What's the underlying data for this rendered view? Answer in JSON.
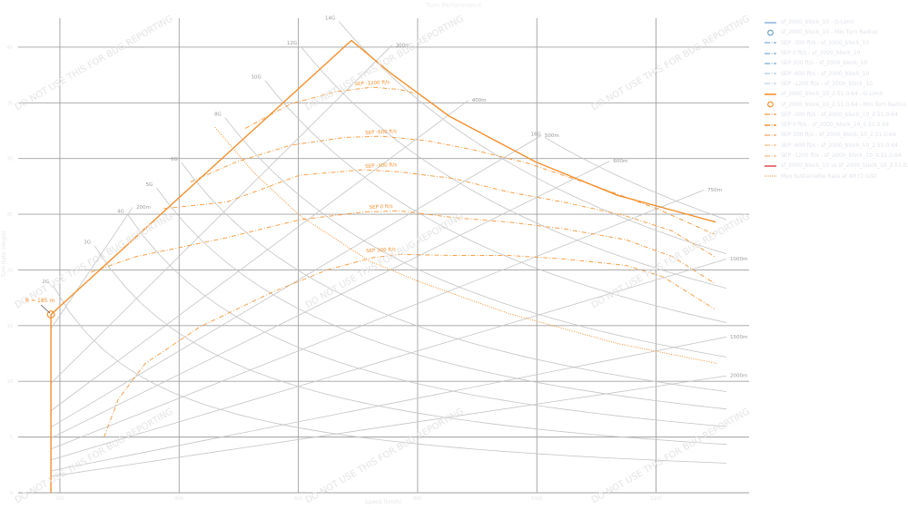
{
  "title": "Turn Performance",
  "watermark": "DO NOT USE THIS FOR BUG REPORTING",
  "colors": {
    "grid": "#a0a0a0",
    "reference": "#c4c4c4",
    "orange": "#f4902e",
    "blue": "#8fb8de",
    "red": "#e15759",
    "tick_text": "#e6e6e6"
  },
  "legend": [
    {
      "label": "sf_2000_block_10 - G-Limit",
      "color": "#8fb8de",
      "style": "solid"
    },
    {
      "label": "sf_2000_block_10 - Min Turn Radius",
      "color": "#6f9fd0",
      "style": "circle"
    },
    {
      "label": "SEP -300 ft/s - sf_2000_block_10",
      "color": "#8fb8de",
      "style": "dashdot"
    },
    {
      "label": "SEP 0 ft/s - sf_2000_block_10",
      "color": "#8fb8de",
      "style": "dashdot"
    },
    {
      "label": "SEP 300 ft/s - sf_2000_block_10",
      "color": "#8fb8de",
      "style": "dashdot"
    },
    {
      "label": "SEP -600 ft/s - sf_2000_block_10",
      "color": "#b9d3ea",
      "style": "dashdot"
    },
    {
      "label": "SEP -1200 ft/s - sf_2000_block_10",
      "color": "#c9dcee",
      "style": "dashdot"
    },
    {
      "label": "sf_2000_block_10_2.51.0.64 - G-Limit",
      "color": "#f4902e",
      "style": "solid"
    },
    {
      "label": "sf_2000_block_10_2.51.0.64 - Min Turn Radius",
      "color": "#f4902e",
      "style": "circle"
    },
    {
      "label": "SEP -300 ft/s - sf_2000_block_10_2.51.0.64",
      "color": "#f5a766",
      "style": "dashdot"
    },
    {
      "label": "SEP 0 ft/s - sf_2000_block_10_2.51.0.64",
      "color": "#f4902e",
      "style": "dashdot"
    },
    {
      "label": "SEP 300 ft/s - sf_2000_block_10_2.51.0.64",
      "color": "#f7b47a",
      "style": "dashdot"
    },
    {
      "label": "SEP -600 ft/s - sf_2000_block_10_2.51.0.64",
      "color": "#f9c595",
      "style": "dashdot"
    },
    {
      "label": "SEP -1200 ft/s - sf_2000_block_10_2.51.0.64",
      "color": "#f9c595",
      "style": "dashdot"
    },
    {
      "label": "sf_2000_block_10 vs sf_2000_block_10_2.51.0.64 - Diff",
      "color": "#e15759",
      "style": "solid"
    },
    {
      "label": "Max Sustainable Rate at Alt (1 G/s)",
      "color": "#f7b47a",
      "style": "dotted"
    }
  ],
  "chart_data": {
    "type": "line",
    "title": "Turn Performance",
    "xlabel": "Speed (km/h)",
    "ylabel": "Turn Rate (deg/s)",
    "xlim": [
      130,
      1356
    ],
    "ylim": [
      0,
      42.6
    ],
    "xticks": [
      200,
      400,
      600,
      800,
      1000,
      1200
    ],
    "yticks": [
      0,
      5,
      10,
      15,
      20,
      25,
      30,
      35,
      40
    ],
    "grid": true,
    "legend_position": "right",
    "g_lines": [
      {
        "label": "2G",
        "n": 2,
        "v_start": 188
      },
      {
        "label": "3G",
        "n": 3,
        "v_start": 258
      },
      {
        "label": "4G",
        "n": 4,
        "v_start": 314
      },
      {
        "label": "5G",
        "n": 5,
        "v_start": 362
      },
      {
        "label": "6G",
        "n": 6,
        "v_start": 404
      },
      {
        "label": "8G",
        "n": 8,
        "v_start": 477
      },
      {
        "label": "10G",
        "n": 10,
        "v_start": 544
      },
      {
        "label": "12G",
        "n": 12,
        "v_start": 604
      },
      {
        "label": "14G",
        "n": 14,
        "v_start": 668
      },
      {
        "label": "16G",
        "n": 16,
        "v_start": 1013
      }
    ],
    "g_lines_v_end": 1318,
    "radius_lines": [
      {
        "label": "200m",
        "r": 200,
        "v_end": 322
      },
      {
        "label": "300m",
        "r": 300,
        "v_end": 757
      },
      {
        "label": "400m",
        "r": 400,
        "v_end": 885
      },
      {
        "label": "500m",
        "r": 500,
        "v_end": 1007
      },
      {
        "label": "600m",
        "r": 600,
        "v_end": 1122
      },
      {
        "label": "750m",
        "r": 750,
        "v_end": 1280
      },
      {
        "label": "1000m",
        "r": 1000,
        "v_end": 1318
      },
      {
        "label": "1500m",
        "r": 1500,
        "v_end": 1318
      },
      {
        "label": "2000m",
        "r": 2000,
        "v_end": 1318
      }
    ],
    "radius_lines_v_start": 185,
    "series": [
      {
        "name": "sf_2000_block_10_2.51.0.64 - G-Limit",
        "style": "solid",
        "points": [
          [
            185,
            0
          ],
          [
            185,
            16.0
          ],
          [
            689,
            40.6
          ],
          [
            754,
            37.7
          ],
          [
            853,
            33.8
          ],
          [
            998,
            29.7
          ],
          [
            1135,
            26.7
          ],
          [
            1300,
            24.3
          ]
        ]
      },
      {
        "name": "SEP -1200 ft/s",
        "label": "SEP -1200 ft/s",
        "style": "dashdot",
        "points": [
          [
            511,
            32.7
          ],
          [
            587,
            34.9
          ],
          [
            663,
            36.0
          ],
          [
            724,
            36.4
          ],
          [
            770,
            36.2
          ],
          [
            793,
            35.9
          ]
        ]
      },
      {
        "name": "SEP -600 ft/s",
        "label": "SEP -600 ft/s",
        "style": "dashdot",
        "points": [
          [
            419,
            27.9
          ],
          [
            496,
            29.7
          ],
          [
            587,
            31.2
          ],
          [
            678,
            31.9
          ],
          [
            739,
            32.0
          ],
          [
            815,
            31.6
          ],
          [
            892,
            30.8
          ],
          [
            983,
            29.6
          ],
          [
            1100,
            27.5
          ],
          [
            1201,
            25.5
          ],
          [
            1298,
            23.2
          ]
        ]
      },
      {
        "name": "SEP -300 ft/s",
        "label": "SEP -300 ft/s",
        "style": "dashdot",
        "points": [
          [
            374,
            25.5
          ],
          [
            480,
            26.1
          ],
          [
            602,
            28.5
          ],
          [
            709,
            29.0
          ],
          [
            770,
            28.8
          ],
          [
            861,
            28.2
          ],
          [
            952,
            27.0
          ],
          [
            1044,
            26.1
          ],
          [
            1146,
            24.9
          ],
          [
            1227,
            23.5
          ],
          [
            1298,
            21.2
          ]
        ]
      },
      {
        "name": "SEP 0 ft/s",
        "label": "SEP 0 ft/s",
        "style": "dashdot",
        "points": [
          [
            252,
            19.8
          ],
          [
            328,
            21.2
          ],
          [
            480,
            22.9
          ],
          [
            602,
            24.5
          ],
          [
            709,
            25.2
          ],
          [
            770,
            25.3
          ],
          [
            861,
            24.7
          ],
          [
            952,
            24.3
          ],
          [
            1044,
            23.7
          ],
          [
            1150,
            22.7
          ],
          [
            1227,
            21.2
          ],
          [
            1298,
            18.8
          ]
        ]
      },
      {
        "name": "SEP 300 ft/s",
        "label": "SEP 300 ft/s",
        "style": "dashdot",
        "points": [
          [
            274,
            5.0
          ],
          [
            298,
            8.4
          ],
          [
            343,
            11.6
          ],
          [
            435,
            14.9
          ],
          [
            556,
            18.0
          ],
          [
            648,
            20.0
          ],
          [
            724,
            21.1
          ],
          [
            770,
            21.4
          ],
          [
            861,
            21.3
          ],
          [
            952,
            21.3
          ],
          [
            1044,
            21.0
          ],
          [
            1150,
            20.4
          ],
          [
            1211,
            19.4
          ],
          [
            1298,
            16.5
          ]
        ]
      },
      {
        "name": "Max Sustainable Rate",
        "style": "dotted",
        "points": [
          [
            460,
            32.8
          ],
          [
            526,
            28.7
          ],
          [
            602,
            24.9
          ],
          [
            719,
            20.8
          ],
          [
            800,
            19.0
          ],
          [
            952,
            16.1
          ],
          [
            1135,
            13.4
          ],
          [
            1303,
            11.6
          ]
        ]
      }
    ],
    "min_turn_radius": {
      "speed": 185,
      "turn_rate": 16.0,
      "label": "R = 185 m"
    }
  }
}
